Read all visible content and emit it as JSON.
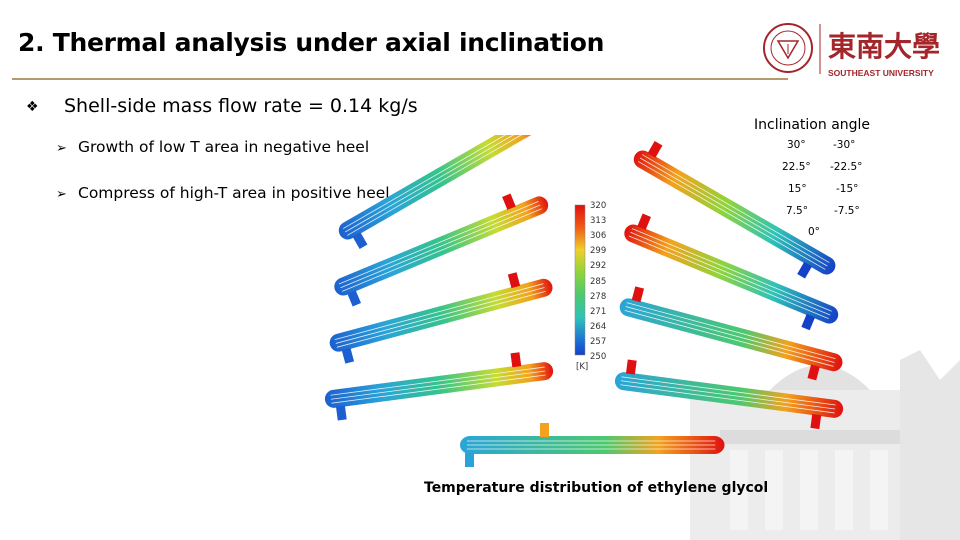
{
  "slide": {
    "title": "2. Thermal analysis under axial inclination",
    "bullet_main": "Shell-side mass flow rate = 0.14 kg/s",
    "sub_bullets": [
      "Growth of low T area in negative heel",
      "Compress of high-T area in positive heel"
    ],
    "caption": "Temperature distribution of ethylene glycol"
  },
  "logo": {
    "university": "SOUTHEAST UNIVERSITY",
    "chinese": "東南大學"
  },
  "inclination": {
    "title": "Inclination angle",
    "positive": [
      "30°",
      "22.5°",
      "15°",
      "7.5°"
    ],
    "negative": [
      "-30°",
      "-22.5°",
      "-15°",
      "-7.5°"
    ],
    "zero": "0°"
  },
  "colorbar": {
    "ticks": [
      "320",
      "313",
      "306",
      "299",
      "292",
      "285",
      "278",
      "271",
      "264",
      "257",
      "250"
    ],
    "unit": "[K]",
    "colors": [
      "#e01010",
      "#f15b16",
      "#f3a21d",
      "#efd02a",
      "#c6dc33",
      "#8fd43b",
      "#4cc96f",
      "#2fc3b8",
      "#2aa4d8",
      "#1d72d6",
      "#1540c8"
    ]
  },
  "colors": {
    "rule": "#b39b6f",
    "logo_red": "#a3262b"
  }
}
